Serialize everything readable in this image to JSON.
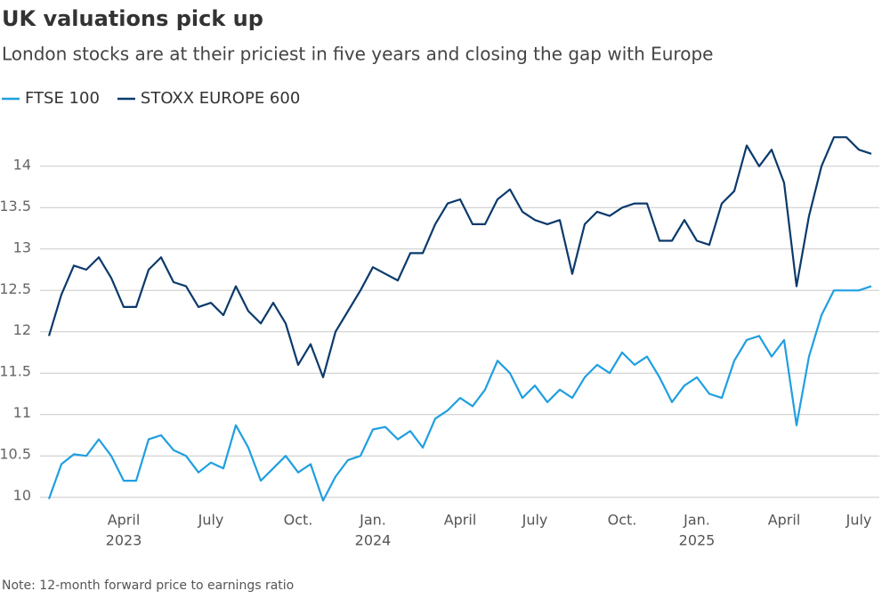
{
  "chart_data": {
    "type": "line",
    "title": "UK valuations pick up",
    "subtitle": "London stocks are at their priciest in five years and closing the gap with Europe",
    "note": "Note: 12-month forward price to earnings ratio",
    "categories": [
      null,
      null,
      null,
      null,
      null,
      null,
      "April",
      null,
      null,
      null,
      null,
      null,
      null,
      "July",
      null,
      null,
      null,
      null,
      null,
      null,
      "Oct.",
      null,
      null,
      null,
      null,
      null,
      "Jan.",
      null,
      null,
      null,
      null,
      null,
      null,
      "April",
      null,
      null,
      null,
      null,
      null,
      "July",
      null,
      null,
      null,
      null,
      null,
      null,
      "Oct.",
      null,
      null,
      null,
      null,
      null,
      "Jan.",
      null,
      null,
      null,
      null,
      null,
      null,
      "April",
      null,
      null,
      null,
      null,
      null,
      "July",
      null
    ],
    "category_years": [
      null,
      null,
      null,
      null,
      null,
      null,
      "2023",
      null,
      null,
      null,
      null,
      null,
      null,
      null,
      null,
      null,
      null,
      null,
      null,
      null,
      null,
      null,
      null,
      null,
      null,
      null,
      "2024",
      null,
      null,
      null,
      null,
      null,
      null,
      null,
      null,
      null,
      null,
      null,
      null,
      null,
      null,
      null,
      null,
      null,
      null,
      null,
      null,
      null,
      null,
      null,
      null,
      null,
      "2025",
      null,
      null,
      null,
      null,
      null,
      null,
      null,
      null,
      null,
      null,
      null,
      null,
      null,
      null
    ],
    "series": [
      {
        "name": "FTSE 100",
        "color": "#1f9fe0",
        "values": [
          9.98,
          10.4,
          10.52,
          10.5,
          10.7,
          10.5,
          10.2,
          10.2,
          10.7,
          10.75,
          10.57,
          10.5,
          10.3,
          10.42,
          10.35,
          10.87,
          10.6,
          10.2,
          10.35,
          10.5,
          10.3,
          10.4,
          9.96,
          10.25,
          10.45,
          10.5,
          10.82,
          10.85,
          10.7,
          10.8,
          10.6,
          10.95,
          11.05,
          11.2,
          11.1,
          11.3,
          11.65,
          11.5,
          11.2,
          11.35,
          11.15,
          11.3,
          11.2,
          11.45,
          11.6,
          11.5,
          11.75,
          11.6,
          11.7,
          11.45,
          11.15,
          11.35,
          11.45,
          11.25,
          11.2,
          11.65,
          11.9,
          11.95,
          11.7,
          11.9,
          10.87,
          11.7,
          12.2,
          12.5,
          12.5,
          12.5,
          12.55
        ]
      },
      {
        "name": "STOXX EUROPE 600",
        "color": "#0b3a6b",
        "values": [
          11.95,
          12.45,
          12.8,
          12.75,
          12.9,
          12.65,
          12.3,
          12.3,
          12.75,
          12.9,
          12.6,
          12.55,
          12.3,
          12.35,
          12.2,
          12.55,
          12.25,
          12.1,
          12.35,
          12.1,
          11.6,
          11.85,
          11.45,
          12.0,
          12.25,
          12.5,
          12.78,
          12.7,
          12.62,
          12.95,
          12.95,
          13.3,
          13.55,
          13.6,
          13.3,
          13.3,
          13.6,
          13.72,
          13.45,
          13.35,
          13.3,
          13.35,
          12.7,
          13.3,
          13.45,
          13.4,
          13.5,
          13.55,
          13.55,
          13.1,
          13.1,
          13.35,
          13.1,
          13.05,
          13.55,
          13.7,
          14.25,
          14.0,
          14.2,
          13.8,
          12.55,
          13.4,
          14.0,
          14.35,
          14.35,
          14.2,
          14.15
        ]
      }
    ],
    "ylim": [
      9.9,
      14.6
    ],
    "yticks": [
      10,
      10.5,
      11,
      11.5,
      12,
      12.5,
      13,
      13.5,
      14
    ],
    "grid": true
  }
}
